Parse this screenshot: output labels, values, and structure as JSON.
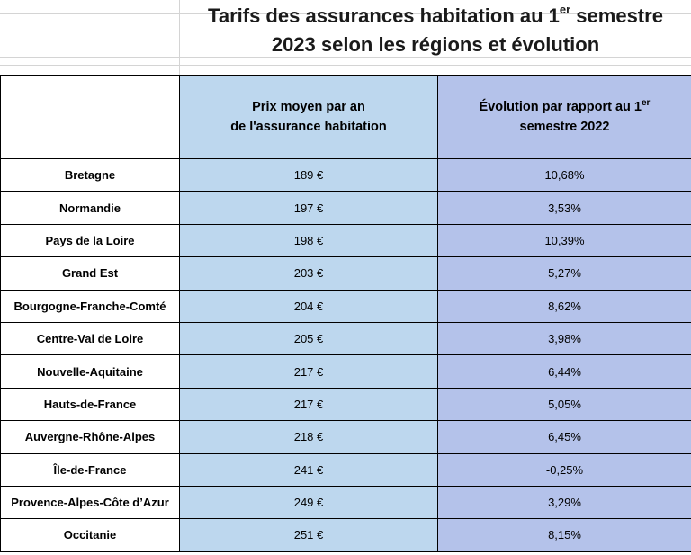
{
  "title": {
    "line1_pre": "Tarifs des assurances habitation au 1",
    "line1_sup": "er",
    "line1_post": " semestre",
    "line2": "2023 selon les régions et évolution"
  },
  "headers": {
    "price_line1": "Prix moyen par an",
    "price_line2": "de l'assurance habitation",
    "evo_pre": "Évolution par rapport au 1",
    "evo_sup": "er",
    "evo_line2": "semestre 2022"
  },
  "rows": [
    {
      "region": "Bretagne",
      "price": "189 €",
      "evolution": "10,68%"
    },
    {
      "region": "Normandie",
      "price": "197 €",
      "evolution": "3,53%"
    },
    {
      "region": "Pays de la Loire",
      "price": "198 €",
      "evolution": "10,39%"
    },
    {
      "region": "Grand Est",
      "price": "203 €",
      "evolution": "5,27%"
    },
    {
      "region": "Bourgogne-Franche-Comté",
      "price": "204 €",
      "evolution": "8,62%"
    },
    {
      "region": "Centre-Val de Loire",
      "price": "205 €",
      "evolution": "3,98%"
    },
    {
      "region": "Nouvelle-Aquitaine",
      "price": "217 €",
      "evolution": "6,44%"
    },
    {
      "region": "Hauts-de-France",
      "price": "217 €",
      "evolution": "5,05%"
    },
    {
      "region": "Auvergne-Rhône-Alpes",
      "price": "218 €",
      "evolution": "6,45%"
    },
    {
      "region": "Île-de-France",
      "price": "241 €",
      "evolution": "-0,25%"
    },
    {
      "region": "Provence-Alpes-Côte d’Azur",
      "price": "249 €",
      "evolution": "3,29%"
    },
    {
      "region": "Occitanie",
      "price": "251 €",
      "evolution": "8,15%"
    }
  ],
  "colors": {
    "price_column": "#bdd7ee",
    "evolution_column": "#b4c2ea"
  }
}
